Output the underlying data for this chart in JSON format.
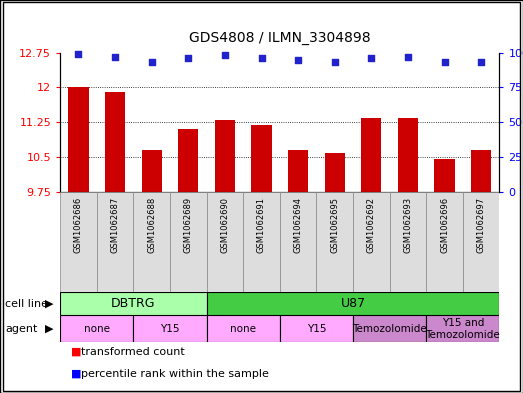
{
  "title": "GDS4808 / ILMN_3304898",
  "samples": [
    "GSM1062686",
    "GSM1062687",
    "GSM1062688",
    "GSM1062689",
    "GSM1062690",
    "GSM1062691",
    "GSM1062694",
    "GSM1062695",
    "GSM1062692",
    "GSM1062693",
    "GSM1062696",
    "GSM1062697"
  ],
  "bar_values": [
    12.0,
    11.9,
    10.65,
    11.1,
    11.3,
    11.2,
    10.65,
    10.6,
    11.35,
    11.35,
    10.45,
    10.65
  ],
  "dot_values": [
    99,
    97,
    93,
    96,
    98,
    96,
    95,
    93,
    96,
    97,
    93,
    93
  ],
  "ylim_left": [
    9.75,
    12.75
  ],
  "ylim_right": [
    0,
    100
  ],
  "yticks_left": [
    9.75,
    10.5,
    11.25,
    12.0,
    12.75
  ],
  "yticks_right": [
    0,
    25,
    50,
    75,
    100
  ],
  "ytick_labels_left": [
    "9.75",
    "10.5",
    "11.25",
    "12",
    "12.75"
  ],
  "ytick_labels_right": [
    "0",
    "25",
    "50",
    "75",
    "100%"
  ],
  "bar_color": "#cc0000",
  "dot_color": "#2222cc",
  "bar_width": 0.55,
  "cell_line_color_DBTRG": "#aaffaa",
  "cell_line_color_U87": "#44cc44",
  "agent_color_light": "#ffaaff",
  "agent_color_dark": "#cc88cc",
  "legend_red_label": "transformed count",
  "legend_blue_label": "percentile rank within the sample",
  "agent_segments": [
    {
      "start": 0,
      "end": 2,
      "label": "none",
      "color": "#ffaaff"
    },
    {
      "start": 2,
      "end": 4,
      "label": "Y15",
      "color": "#ffaaff"
    },
    {
      "start": 4,
      "end": 6,
      "label": "none",
      "color": "#ffaaff"
    },
    {
      "start": 6,
      "end": 8,
      "label": "Y15",
      "color": "#ffaaff"
    },
    {
      "start": 8,
      "end": 10,
      "label": "Temozolomide",
      "color": "#cc88cc"
    },
    {
      "start": 10,
      "end": 12,
      "label": "Y15 and\nTemozolomide",
      "color": "#cc88cc"
    }
  ],
  "cell_line_segments": [
    {
      "start": 0,
      "end": 4,
      "label": "DBTRG",
      "color": "#aaffaa"
    },
    {
      "start": 4,
      "end": 12,
      "label": "U87",
      "color": "#44cc44"
    }
  ]
}
